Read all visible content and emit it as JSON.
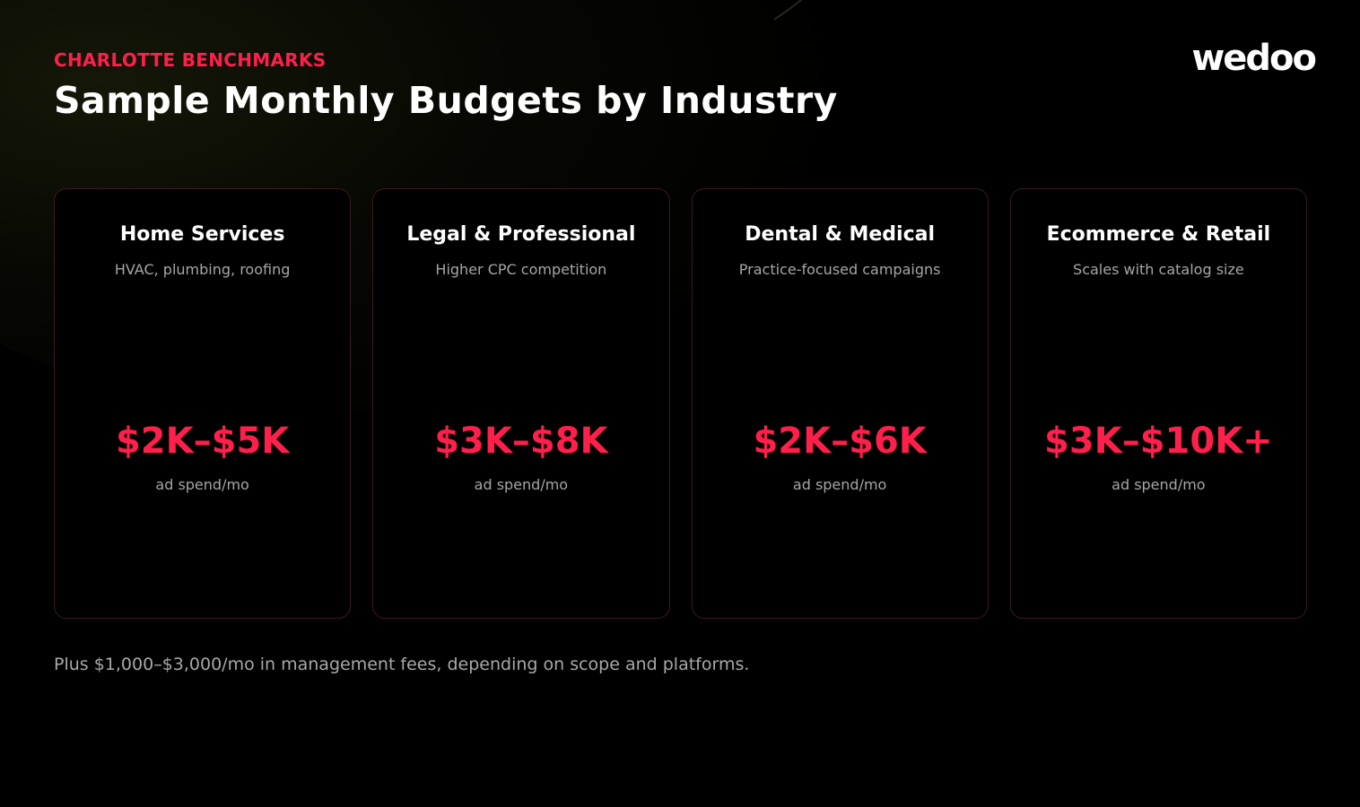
{
  "colors": {
    "accent": "#ff1f4b",
    "background": "#000000",
    "card_border": "#3a1a22",
    "muted_text": "#a6a6a6"
  },
  "header": {
    "eyebrow": "CHARLOTTE BENCHMARKS",
    "title": "Sample Monthly Budgets by Industry",
    "logo_text": "wedoo"
  },
  "cards": [
    {
      "title": "Home Services",
      "subtitle": "HVAC, plumbing, roofing",
      "value": "$2K–$5K",
      "unit": "ad spend/mo"
    },
    {
      "title": "Legal & Professional",
      "subtitle": "Higher CPC competition",
      "value": "$3K–$8K",
      "unit": "ad spend/mo"
    },
    {
      "title": "Dental & Medical",
      "subtitle": "Practice-focused campaigns",
      "value": "$2K–$6K",
      "unit": "ad spend/mo"
    },
    {
      "title": "Ecommerce & Retail",
      "subtitle": "Scales with catalog size",
      "value": "$3K–$10K+",
      "unit": "ad spend/mo"
    }
  ],
  "footnote": "Plus $1,000–$3,000/mo in management fees, depending on scope and platforms."
}
